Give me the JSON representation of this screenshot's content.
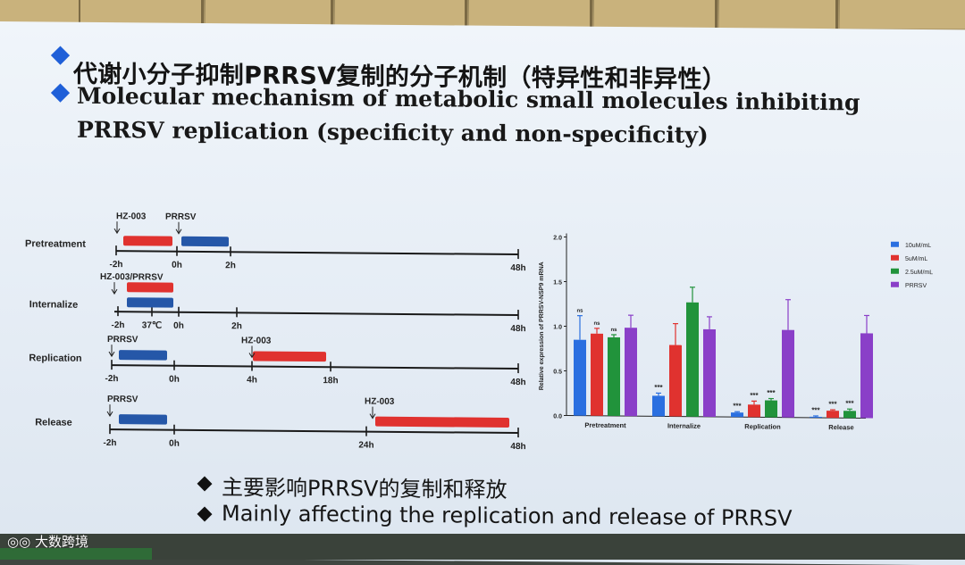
{
  "slide": {
    "title_cn": "代谢小分子抑制PRRSV复制的分子机制（特异性和非异性）",
    "title_en_line1": "Molecular mechanism of metabolic small molecules inhibiting",
    "title_en_line2": "PRRSV replication (specificity and non-specificity)",
    "summary_cn": "主要影响PRRSV的复制和释放",
    "summary_en": "Mainly affecting the replication and release of PRRSV",
    "watermark": "大数跨境",
    "colors": {
      "bullet": "#1f5fd8",
      "drug": "#e0322f",
      "virus": "#2557a8"
    }
  },
  "timeline": {
    "rows": [
      {
        "label": "Pretreatment",
        "annotations": [
          "HZ-003",
          "PRRSV"
        ],
        "ticks": [
          "-2h",
          "0h",
          "2h",
          "48h"
        ]
      },
      {
        "label": "Internalize",
        "annotations": [
          "HZ-003/PRRSV"
        ],
        "ticks": [
          "-2h",
          "37℃",
          "0h",
          "2h",
          "48h"
        ]
      },
      {
        "label": "Replication",
        "annotations": [
          "PRRSV",
          "HZ-003"
        ],
        "ticks": [
          "-2h",
          "0h",
          "4h",
          "18h",
          "48h"
        ]
      },
      {
        "label": "Release",
        "annotations": [
          "PRRSV",
          "HZ-003"
        ],
        "ticks": [
          "-2h",
          "0h",
          "24h",
          "48h"
        ]
      }
    ]
  },
  "chart_data": {
    "type": "bar",
    "categories": [
      "Pretreatment",
      "Internalize",
      "Replication",
      "Release"
    ],
    "ylabel": "Relative expression of PRRSV-NSP9 mRNA",
    "ylim": [
      0,
      2.0
    ],
    "yticks": [
      "0.0",
      "0.5",
      "1.0",
      "1.5",
      "2.0"
    ],
    "legend_position": "top-right",
    "series": [
      {
        "name": "10uM/mL",
        "color": "#2a6fe0",
        "values": [
          0.85,
          0.23,
          0.05,
          0.01
        ],
        "errors": [
          0.27,
          0.03,
          0.01,
          0.01
        ],
        "labels": [
          "ns",
          "***",
          "***",
          "***"
        ]
      },
      {
        "name": "5uM/mL",
        "color": "#e0322f",
        "values": [
          0.92,
          0.8,
          0.14,
          0.08
        ],
        "errors": [
          0.06,
          0.24,
          0.04,
          0.01
        ],
        "labels": [
          "ns",
          "",
          "***",
          "***"
        ]
      },
      {
        "name": "2.5uM/mL",
        "color": "#21933b",
        "values": [
          0.88,
          1.28,
          0.19,
          0.08
        ],
        "errors": [
          0.03,
          0.17,
          0.02,
          0.02
        ],
        "labels": [
          "ns",
          "",
          "***",
          "***"
        ]
      },
      {
        "name": "PRRSV",
        "color": "#8a3fc8",
        "values": [
          0.99,
          0.98,
          0.98,
          0.95
        ],
        "errors": [
          0.14,
          0.14,
          0.34,
          0.2
        ],
        "labels": [
          "",
          "",
          "",
          ""
        ]
      }
    ]
  }
}
